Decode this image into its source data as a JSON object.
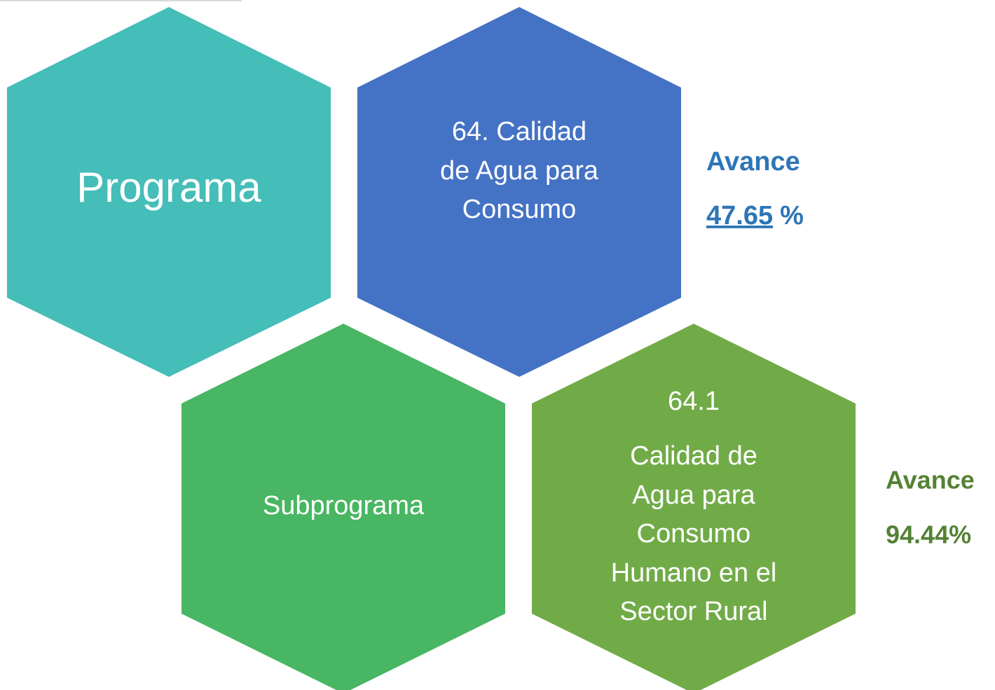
{
  "hexagons": [
    {
      "lines": [
        "Programa"
      ]
    },
    {
      "lines": [
        "64.  Calidad",
        "de Agua para",
        "Consumo"
      ]
    },
    {
      "lines": [
        "Subprograma"
      ]
    },
    {
      "lines": [
        "64.1",
        "Calidad de",
        "Agua para",
        "Consumo",
        "Humano en el",
        "Sector Rural"
      ]
    }
  ],
  "programa_avance": {
    "label": "Avance",
    "value": "47.65",
    "unit": "%"
  },
  "subprograma_avance": {
    "label": "Avance",
    "value": "94.44%"
  }
}
